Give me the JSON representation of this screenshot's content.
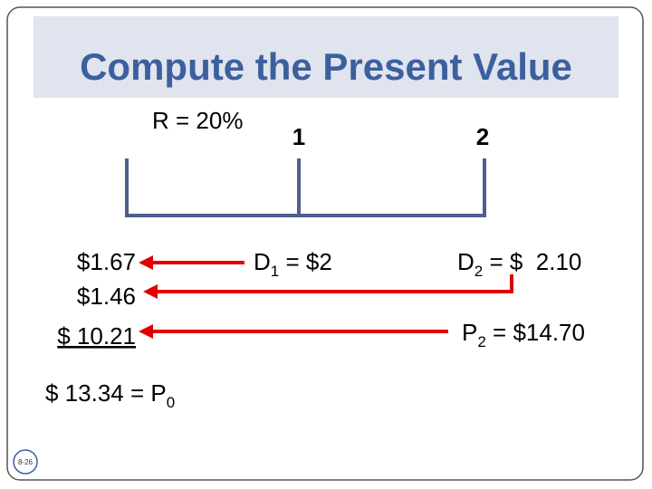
{
  "slide": {
    "title": "Compute the Present Value",
    "rate": "R = 20%",
    "timeline": {
      "period_1": "1",
      "period_2": "2"
    },
    "present_values": [
      "$1.67",
      "$1.46",
      "$ 10.21"
    ],
    "total": {
      "text": "$ 13.34 = P",
      "sub": "0"
    },
    "d1": {
      "base": "D",
      "sub": "1",
      "rest": " = $2"
    },
    "d2": {
      "base": "D",
      "sub": "2",
      "rest": " = $  2.10"
    },
    "p2": {
      "base": "P",
      "sub": "2",
      "rest": " = $14.70"
    },
    "page_number": "8-26"
  }
}
